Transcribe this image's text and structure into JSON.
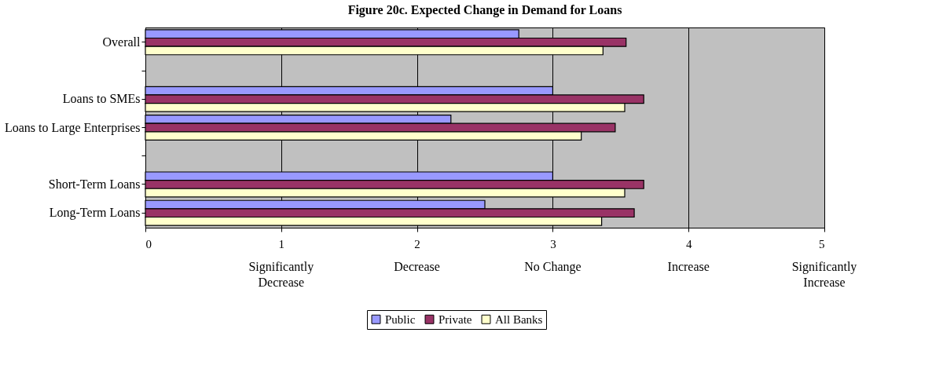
{
  "chart_data": {
    "type": "bar",
    "orientation": "horizontal",
    "title": "Figure 20c. Expected Change in Demand for Loans",
    "categories": [
      "Overall",
      null,
      "Loans to SMEs",
      "Loans to Large Enterprises",
      null,
      "Short-Term Loans",
      "Long-Term Loans"
    ],
    "series": [
      {
        "name": "Public",
        "color": "#9999ff",
        "values": [
          2.75,
          null,
          3.0,
          2.25,
          null,
          3.0,
          2.5
        ]
      },
      {
        "name": "Private",
        "color": "#993366",
        "values": [
          3.54,
          null,
          3.67,
          3.46,
          null,
          3.67,
          3.6
        ]
      },
      {
        "name": "All Banks",
        "color": "#ffffcc",
        "values": [
          3.37,
          null,
          3.53,
          3.21,
          null,
          3.53,
          3.36
        ]
      }
    ],
    "xlim": [
      0,
      5
    ],
    "xticks": [
      0,
      1,
      2,
      3,
      4,
      5
    ],
    "grid": "x",
    "legend": "bottom",
    "annotations": [
      "Significantly Decrease",
      "Decrease",
      "No Change",
      "Increase",
      "Significantly Increase"
    ]
  }
}
